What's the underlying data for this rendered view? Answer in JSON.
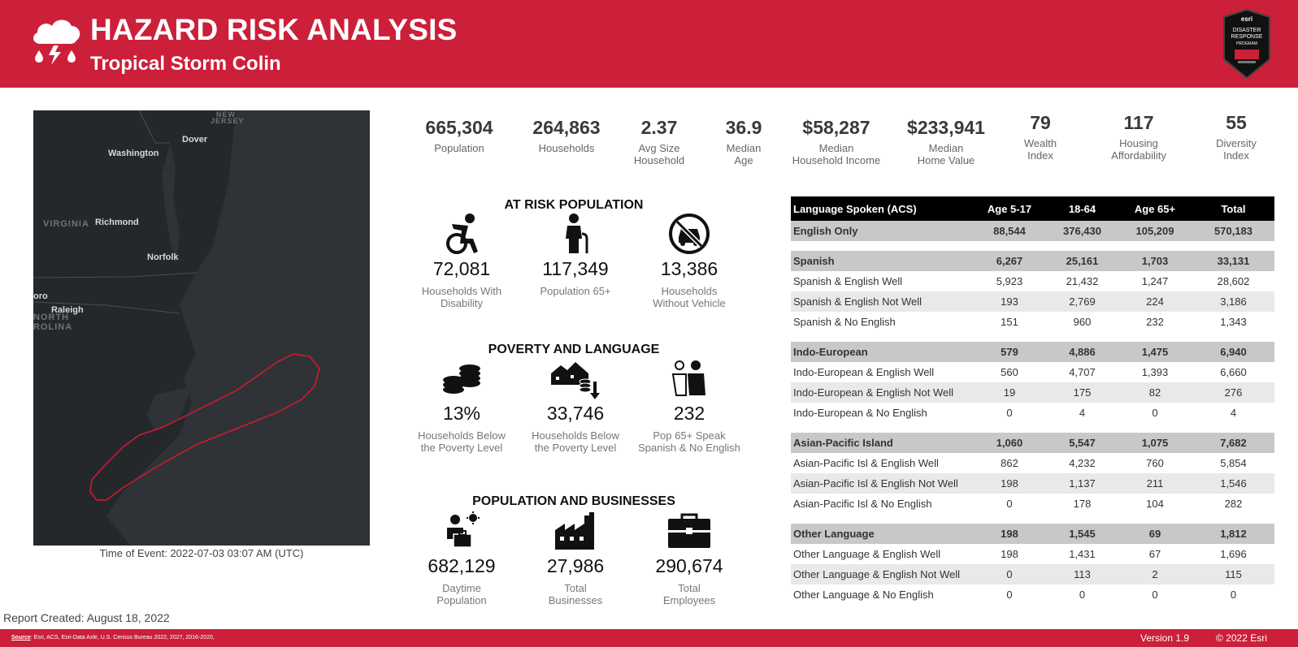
{
  "header": {
    "title": "HAZARD RISK ANALYSIS",
    "subtitle": "Tropical Storm Colin",
    "badge": {
      "brand": "esri",
      "line1": "DISASTER",
      "line2": "RESPONSE",
      "line3": "PROGRAM"
    }
  },
  "map": {
    "labels": {
      "new_jersey_1": "NEW",
      "new_jersey_2": "JERSEY",
      "dover": "Dover",
      "washington": "Washington",
      "virginia": "VIRGINIA",
      "richmond": "Richmond",
      "norfolk": "Norfolk",
      "boro": "oro",
      "raleigh": "Raleigh",
      "north": "NORTH",
      "carolina": "ROLINA"
    },
    "caption": "Time of Event: 2022-07-03 03:07 AM (UTC)",
    "colors": {
      "land": "#25282b",
      "water": "#34383c",
      "storm_outline": "#d8182c"
    }
  },
  "report_created": "Report Created: August 18, 2022",
  "stats": [
    {
      "value": "665,304",
      "label1": "Population",
      "label2": ""
    },
    {
      "value": "264,863",
      "label1": "Households",
      "label2": ""
    },
    {
      "value": "2.37",
      "label1": "Avg Size",
      "label2": "Household"
    },
    {
      "value": "36.9",
      "label1": "Median",
      "label2": "Age"
    },
    {
      "value": "$58,287",
      "label1": "Median",
      "label2": "Household Income"
    },
    {
      "value": "$233,941",
      "label1": "Median",
      "label2": "Home Value"
    },
    {
      "value": "79",
      "label1": "Wealth",
      "label2": "Index"
    },
    {
      "value": "117",
      "label1": "Housing",
      "label2": "Affordability"
    },
    {
      "value": "55",
      "label1": "Diversity",
      "label2": "Index"
    }
  ],
  "at_risk": {
    "title": "AT RISK POPULATION",
    "items": [
      {
        "icon": "wheelchair-icon",
        "value": "72,081",
        "label1": "Households With",
        "label2": "Disability"
      },
      {
        "icon": "elderly-person-icon",
        "value": "117,349",
        "label1": "Population 65+",
        "label2": ""
      },
      {
        "icon": "no-vehicle-icon",
        "value": "13,386",
        "label1": "Households",
        "label2": "Without Vehicle"
      }
    ]
  },
  "poverty": {
    "title": "POVERTY AND LANGUAGE",
    "items": [
      {
        "icon": "coins-icon",
        "value": "13%",
        "label1": "Households Below",
        "label2": "the Poverty Level"
      },
      {
        "icon": "houses-coins-down-icon",
        "value": "33,746",
        "label1": "Households Below",
        "label2": "the Poverty Level"
      },
      {
        "icon": "speaking-people-icon",
        "value": "232",
        "label1": "Pop 65+ Speak",
        "label2": "Spanish & No English"
      }
    ]
  },
  "businesses": {
    "title": "POPULATION AND BUSINESSES",
    "items": [
      {
        "icon": "worker-sun-icon",
        "value": "682,129",
        "label1": "Daytime",
        "label2": "Population"
      },
      {
        "icon": "factory-icon",
        "value": "27,986",
        "label1": "Total",
        "label2": "Businesses"
      },
      {
        "icon": "briefcase-icon",
        "value": "290,674",
        "label1": "Total",
        "label2": "Employees"
      }
    ]
  },
  "language_table": {
    "headers": [
      "Language Spoken (ACS)",
      "Age 5-17",
      "18-64",
      "Age 65+",
      "Total"
    ],
    "english": [
      "English Only",
      "88,544",
      "376,430",
      "105,209",
      "570,183"
    ],
    "groups": [
      {
        "row": [
          "Spanish",
          "6,267",
          "25,161",
          "1,703",
          "33,131"
        ],
        "sub": [
          [
            "Spanish & English Well",
            "5,923",
            "21,432",
            "1,247",
            "28,602"
          ],
          [
            "Spanish & English Not Well",
            "193",
            "2,769",
            "224",
            "3,186"
          ],
          [
            "Spanish & No English",
            "151",
            "960",
            "232",
            "1,343"
          ]
        ]
      },
      {
        "row": [
          "Indo-European",
          "579",
          "4,886",
          "1,475",
          "6,940"
        ],
        "sub": [
          [
            "Indo-European & English Well",
            "560",
            "4,707",
            "1,393",
            "6,660"
          ],
          [
            "Indo-European & English Not Well",
            "19",
            "175",
            "82",
            "276"
          ],
          [
            "Indo-European & No English",
            "0",
            "4",
            "0",
            "4"
          ]
        ]
      },
      {
        "row": [
          "Asian-Pacific Island",
          "1,060",
          "5,547",
          "1,075",
          "7,682"
        ],
        "sub": [
          [
            "Asian-Pacific Isl & English Well",
            "862",
            "4,232",
            "760",
            "5,854"
          ],
          [
            "Asian-Pacific Isl & English Not Well",
            "198",
            "1,137",
            "211",
            "1,546"
          ],
          [
            "Asian-Pacific Isl & No English",
            "0",
            "178",
            "104",
            "282"
          ]
        ]
      },
      {
        "row": [
          "Other Language",
          "198",
          "1,545",
          "69",
          "1,812"
        ],
        "sub": [
          [
            "Other Language & English Well",
            "198",
            "1,431",
            "67",
            "1,696"
          ],
          [
            "Other Language & English Not Well",
            "0",
            "113",
            "2",
            "115"
          ],
          [
            "Other Language & No English",
            "0",
            "0",
            "0",
            "0"
          ]
        ]
      }
    ]
  },
  "footer": {
    "source_label": "Source",
    "source_text": ": Esri, ACS, Esri-Data Axle, U.S. Census Bureau  2022, 2027, 2016-2020,",
    "version": "Version 1.9",
    "copyright": "© 2022 Esri"
  },
  "colors": {
    "brand_red": "#cc1f3a",
    "table_header": "#000000",
    "group_row": "#c8c8c8",
    "alt_row": "#e9e9e9"
  }
}
